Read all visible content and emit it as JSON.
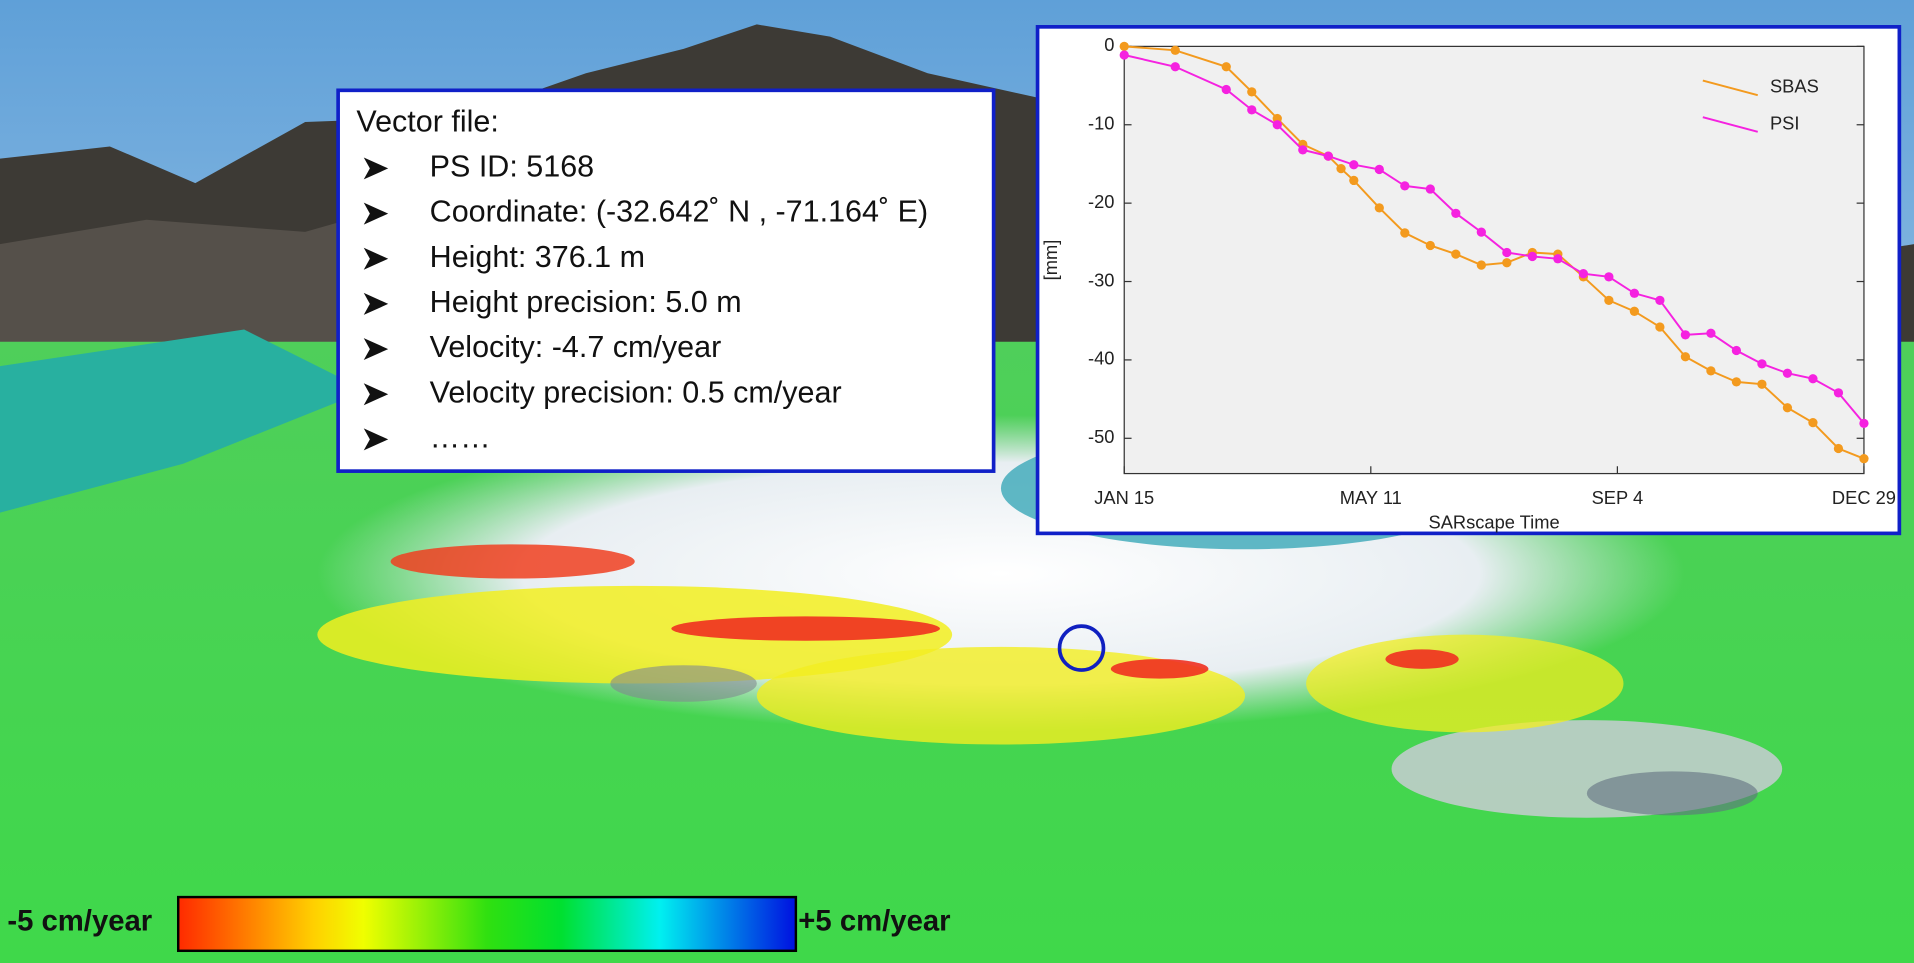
{
  "info_box": {
    "title": "Vector file:",
    "items": [
      "PS ID: 5168",
      "Coordinate: (-32.642˚ N , -71.164˚ E)",
      "Height: 376.1 m",
      "Height precision: 5.0 m",
      "Velocity: -4.7 cm/year",
      "Velocity precision: 0.5 cm/year",
      "……"
    ]
  },
  "colorbar": {
    "min_label": "-5 cm/year",
    "max_label": "+5 cm/year"
  },
  "chart_data": {
    "type": "line",
    "x_label": "SARscape Time",
    "y_label": "[mm]",
    "xlim": [
      0,
      348
    ],
    "xticks": [
      {
        "value": 0,
        "label": "JAN 15"
      },
      {
        "value": 116,
        "label": "MAY 11"
      },
      {
        "value": 232,
        "label": "SEP 4"
      },
      {
        "value": 348,
        "label": "DEC 29"
      }
    ],
    "ylim": [
      -54.5,
      0
    ],
    "yticks": [
      0,
      -10,
      -20,
      -30,
      -40,
      -50
    ],
    "legend": "upper right",
    "series": [
      {
        "name": "SBAS",
        "color": "#f39a1e",
        "x": [
          0,
          24,
          48,
          60,
          72,
          84,
          96,
          102,
          108,
          120,
          132,
          144,
          156,
          168,
          180,
          192,
          204,
          216,
          228,
          240,
          252,
          264,
          276,
          288,
          300,
          312,
          324,
          336,
          348
        ],
        "values": [
          0,
          -0.5,
          -2.6,
          -5.8,
          -9.2,
          -12.5,
          -14,
          -15.6,
          -17.1,
          -20.6,
          -23.8,
          -25.4,
          -26.5,
          -27.9,
          -27.6,
          -26.3,
          -26.5,
          -29.4,
          -32.4,
          -33.8,
          -35.8,
          -39.6,
          -41.4,
          -42.8,
          -43.1,
          -46.1,
          -48,
          -51.3,
          -52.6
        ]
      },
      {
        "name": "PSI",
        "color": "#f522e0",
        "x": [
          0,
          24,
          48,
          60,
          72,
          84,
          96,
          108,
          120,
          132,
          144,
          156,
          168,
          180,
          192,
          204,
          216,
          228,
          240,
          252,
          264,
          276,
          288,
          300,
          312,
          324,
          336,
          348
        ],
        "values": [
          -1.1,
          -2.6,
          -5.5,
          -8.1,
          -10,
          -13.2,
          -14,
          -15.1,
          -15.7,
          -17.8,
          -18.2,
          -21.3,
          -23.7,
          -26.3,
          -26.8,
          -27.1,
          -29,
          -29.4,
          -31.5,
          -32.4,
          -36.8,
          -36.6,
          -38.8,
          -40.5,
          -41.7,
          -42.4,
          -44.2,
          -48.1
        ]
      }
    ]
  }
}
